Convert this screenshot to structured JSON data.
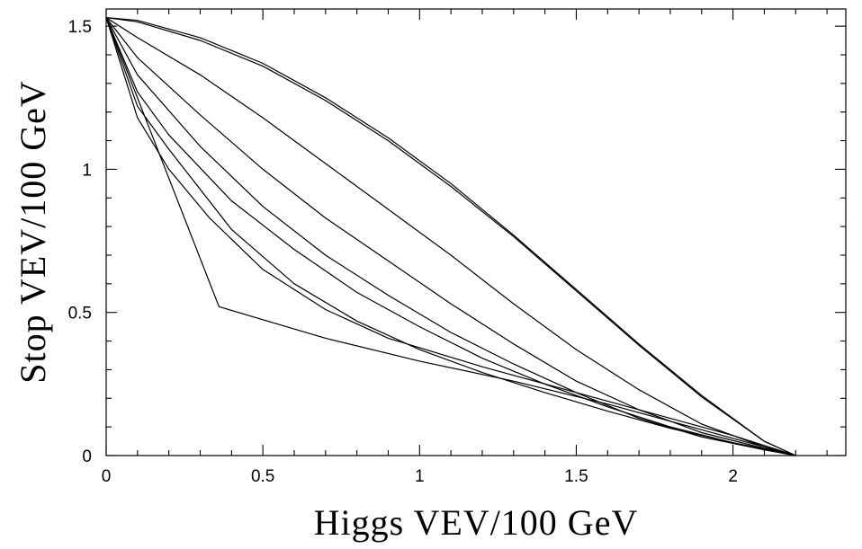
{
  "chart_data": {
    "type": "line",
    "title": "",
    "xlabel": "Higgs VEV/100 GeV",
    "ylabel": "Stop VEV/100 GeV",
    "xlim": [
      0,
      2.36
    ],
    "ylim": [
      0,
      1.56
    ],
    "grid": false,
    "x_ticks": [
      0,
      0.5,
      1,
      1.5,
      2
    ],
    "x_tick_labels": [
      "0",
      "0.5",
      "1",
      "1.5",
      "2"
    ],
    "y_ticks": [
      0,
      0.5,
      1,
      1.5
    ],
    "y_tick_labels": [
      "0",
      "0.5",
      "1",
      "1.5"
    ],
    "series": [
      {
        "values": [
          [
            0,
            1.53
          ],
          [
            0.1,
            1.52
          ],
          [
            0.3,
            1.46
          ],
          [
            0.5,
            1.37
          ],
          [
            0.7,
            1.25
          ],
          [
            0.9,
            1.11
          ],
          [
            1.1,
            0.95
          ],
          [
            1.3,
            0.77
          ],
          [
            1.5,
            0.58
          ],
          [
            1.7,
            0.39
          ],
          [
            1.9,
            0.21
          ],
          [
            2.1,
            0.05
          ],
          [
            2.2,
            0
          ]
        ]
      },
      {
        "values": [
          [
            0,
            1.53
          ],
          [
            0.1,
            1.515
          ],
          [
            0.3,
            1.45
          ],
          [
            0.5,
            1.36
          ],
          [
            0.7,
            1.24
          ],
          [
            0.9,
            1.1
          ],
          [
            1.1,
            0.94
          ],
          [
            1.3,
            0.765
          ],
          [
            1.5,
            0.575
          ],
          [
            1.7,
            0.385
          ],
          [
            1.9,
            0.205
          ],
          [
            2.1,
            0.05
          ],
          [
            2.2,
            0
          ]
        ]
      },
      {
        "values": [
          [
            0,
            1.53
          ],
          [
            0.1,
            1.46
          ],
          [
            0.3,
            1.33
          ],
          [
            0.5,
            1.18
          ],
          [
            0.7,
            1.02
          ],
          [
            0.9,
            0.86
          ],
          [
            1.1,
            0.7
          ],
          [
            1.3,
            0.53
          ],
          [
            1.5,
            0.37
          ],
          [
            1.7,
            0.23
          ],
          [
            1.9,
            0.11
          ],
          [
            2.1,
            0.03
          ],
          [
            2.2,
            0
          ]
        ]
      },
      {
        "values": [
          [
            0,
            1.53
          ],
          [
            0.1,
            1.39
          ],
          [
            0.3,
            1.19
          ],
          [
            0.5,
            1.0
          ],
          [
            0.7,
            0.83
          ],
          [
            0.9,
            0.68
          ],
          [
            1.1,
            0.53
          ],
          [
            1.3,
            0.39
          ],
          [
            1.5,
            0.26
          ],
          [
            1.7,
            0.16
          ],
          [
            1.9,
            0.08
          ],
          [
            2.1,
            0.025
          ],
          [
            2.2,
            0
          ]
        ]
      },
      {
        "values": [
          [
            0,
            1.53
          ],
          [
            0.1,
            1.33
          ],
          [
            0.3,
            1.08
          ],
          [
            0.5,
            0.87
          ],
          [
            0.7,
            0.7
          ],
          [
            0.9,
            0.56
          ],
          [
            1.1,
            0.43
          ],
          [
            1.3,
            0.32
          ],
          [
            1.5,
            0.22
          ],
          [
            1.7,
            0.13
          ],
          [
            1.9,
            0.065
          ],
          [
            2.1,
            0.02
          ],
          [
            2.2,
            0
          ]
        ]
      },
      {
        "values": [
          [
            0,
            1.53
          ],
          [
            0.1,
            1.27
          ],
          [
            0.2,
            1.12
          ],
          [
            0.4,
            0.89
          ],
          [
            0.6,
            0.72
          ],
          [
            0.8,
            0.57
          ],
          [
            1.0,
            0.45
          ],
          [
            1.2,
            0.34
          ],
          [
            1.4,
            0.25
          ],
          [
            1.6,
            0.17
          ],
          [
            1.8,
            0.1
          ],
          [
            2.0,
            0.045
          ],
          [
            2.2,
            0
          ]
        ]
      },
      {
        "values": [
          [
            0,
            1.53
          ],
          [
            0.1,
            1.22
          ],
          [
            0.2,
            1.07
          ],
          [
            0.4,
            0.79
          ],
          [
            0.6,
            0.6
          ],
          [
            0.8,
            0.47
          ],
          [
            1.0,
            0.37
          ],
          [
            1.2,
            0.29
          ],
          [
            1.4,
            0.22
          ],
          [
            1.6,
            0.155
          ],
          [
            1.8,
            0.095
          ],
          [
            2.0,
            0.045
          ],
          [
            2.2,
            0
          ]
        ]
      },
      {
        "values": [
          [
            0,
            1.53
          ],
          [
            0.1,
            1.18
          ],
          [
            0.2,
            1.0
          ],
          [
            0.33,
            0.83
          ],
          [
            0.5,
            0.65
          ],
          [
            0.7,
            0.51
          ],
          [
            0.9,
            0.41
          ],
          [
            1.2,
            0.31
          ],
          [
            1.5,
            0.22
          ],
          [
            1.8,
            0.13
          ],
          [
            2.0,
            0.07
          ],
          [
            2.2,
            0
          ]
        ]
      },
      {
        "values": [
          [
            0,
            1.53
          ],
          [
            0.36,
            0.52
          ],
          [
            0.7,
            0.41
          ],
          [
            1.0,
            0.33
          ],
          [
            1.3,
            0.26
          ],
          [
            1.6,
            0.18
          ],
          [
            1.9,
            0.09
          ],
          [
            2.2,
            0
          ]
        ]
      }
    ]
  }
}
